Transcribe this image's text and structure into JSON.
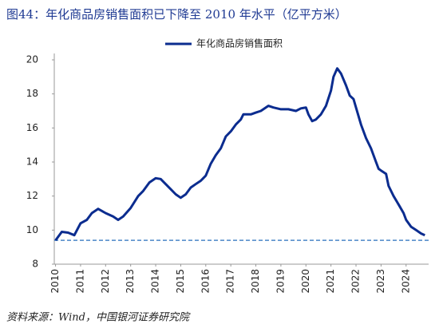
{
  "chart_data": {
    "type": "line",
    "title": "图44：年化商品房销售面积已下降至 2010 年水平（亿平方米）",
    "source": "资料来源：Wind，中国银河证券研究院",
    "x": [
      2010.0,
      2010.25,
      2010.5,
      2010.75,
      2011.0,
      2011.25,
      2011.45,
      2011.7,
      2012.0,
      2012.3,
      2012.5,
      2012.7,
      2013.0,
      2013.3,
      2013.5,
      2013.75,
      2014.0,
      2014.2,
      2014.4,
      2014.6,
      2014.8,
      2015.0,
      2015.2,
      2015.4,
      2015.6,
      2015.8,
      2016.0,
      2016.2,
      2016.4,
      2016.6,
      2016.8,
      2017.0,
      2017.2,
      2017.4,
      2017.5,
      2017.8,
      2018.0,
      2018.2,
      2018.5,
      2018.7,
      2019.0,
      2019.3,
      2019.6,
      2019.8,
      2020.0,
      2020.1,
      2020.25,
      2020.4,
      2020.6,
      2020.8,
      2021.0,
      2021.1,
      2021.25,
      2021.4,
      2021.6,
      2021.75,
      2021.9,
      2022.0,
      2022.2,
      2022.4,
      2022.6,
      2022.8,
      2022.9,
      2023.0,
      2023.2,
      2023.3,
      2023.5,
      2023.7,
      2023.9,
      2024.0,
      2024.2,
      2024.4,
      2024.6,
      2024.75
    ],
    "series": [
      {
        "name": "年化商品房销售面积",
        "color": "#0b2c8f",
        "values": [
          9.4,
          9.9,
          9.85,
          9.7,
          10.4,
          10.6,
          11.0,
          11.25,
          11.0,
          10.8,
          10.6,
          10.8,
          11.3,
          12.0,
          12.3,
          12.8,
          13.05,
          13.0,
          12.7,
          12.4,
          12.1,
          11.9,
          12.1,
          12.5,
          12.7,
          12.9,
          13.2,
          13.9,
          14.4,
          14.8,
          15.5,
          15.8,
          16.2,
          16.5,
          16.8,
          16.8,
          16.9,
          17.0,
          17.3,
          17.2,
          17.1,
          17.1,
          17.0,
          17.15,
          17.2,
          16.8,
          16.4,
          16.5,
          16.8,
          17.3,
          18.2,
          19.0,
          19.5,
          19.2,
          18.5,
          17.9,
          17.7,
          17.2,
          16.2,
          15.4,
          14.8,
          14.0,
          13.6,
          13.5,
          13.3,
          12.6,
          12.0,
          11.5,
          11.0,
          10.6,
          10.2,
          10.0,
          9.8,
          9.7
        ]
      }
    ],
    "reference_line": {
      "value": 9.4,
      "color": "#4a86c8"
    },
    "xlim": [
      2009.95,
      2024.9
    ],
    "xticks": [
      2010,
      2011,
      2012,
      2013,
      2014,
      2015,
      2016,
      2017,
      2018,
      2019,
      2020,
      2021,
      2022,
      2023,
      2024
    ],
    "ylim": [
      8,
      20
    ],
    "yticks": [
      8,
      10,
      12,
      14,
      16,
      18,
      20
    ],
    "grid": false,
    "legend": "top"
  }
}
